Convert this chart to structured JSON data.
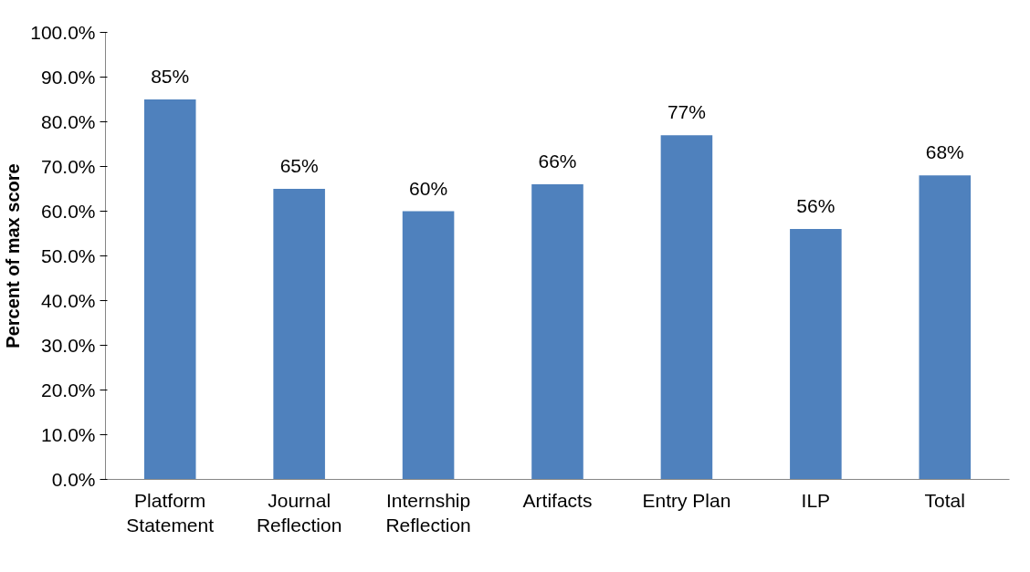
{
  "chart_data": {
    "type": "bar",
    "ylabel": "Percent of max score",
    "categories": [
      "Platform Statement",
      "Journal Reflection",
      "Internship Reflection",
      "Artifacts",
      "Entry Plan",
      "ILP",
      "Total"
    ],
    "values": [
      85,
      65,
      60,
      66,
      77,
      56,
      68
    ],
    "value_labels": [
      "85%",
      "65%",
      "60%",
      "66%",
      "77%",
      "56%",
      "68%"
    ],
    "color": "#4f81bd",
    "ylim": [
      0,
      100
    ],
    "yticks": [
      {
        "value": 0,
        "label": "0.0%"
      },
      {
        "value": 10,
        "label": "10.0%"
      },
      {
        "value": 20,
        "label": "20.0%"
      },
      {
        "value": 30,
        "label": "30.0%"
      },
      {
        "value": 40,
        "label": "40.0%"
      },
      {
        "value": 50,
        "label": "50.0%"
      },
      {
        "value": 60,
        "label": "60.0%"
      },
      {
        "value": 70,
        "label": "70.0%"
      },
      {
        "value": 80,
        "label": "80.0%"
      },
      {
        "value": 90,
        "label": "90.0%"
      },
      {
        "value": 100,
        "label": "100.0%"
      }
    ],
    "grid": false
  }
}
